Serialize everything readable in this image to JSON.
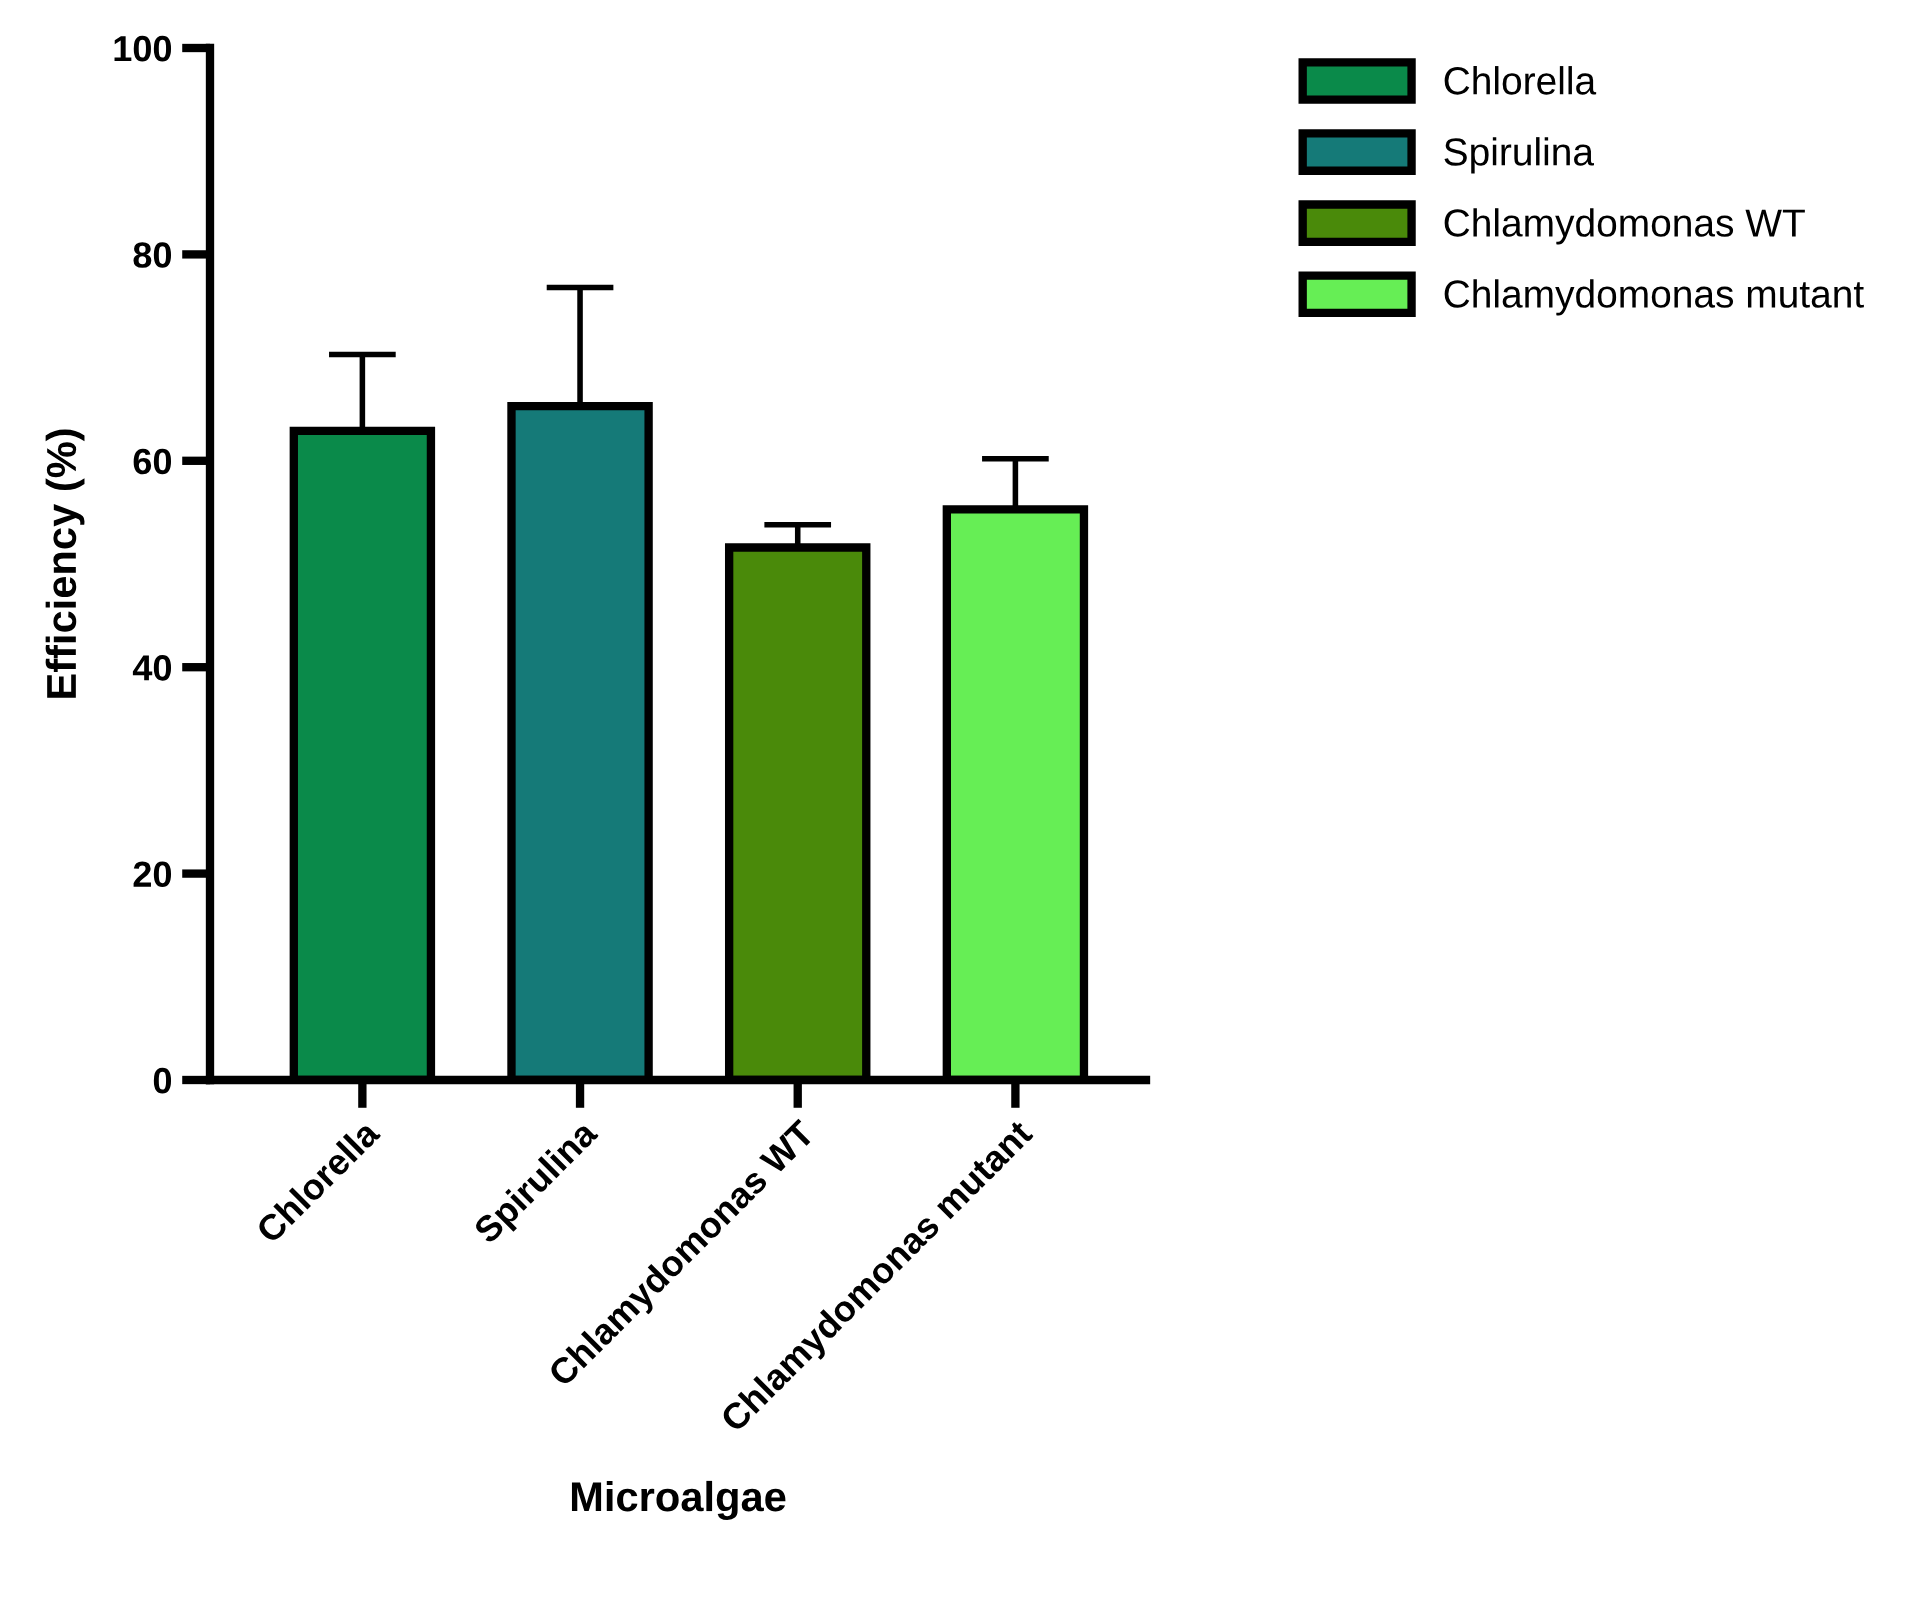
{
  "chart_data": {
    "type": "bar",
    "xlabel": "Microalgae",
    "ylabel": "Efficiency (%)",
    "categories": [
      "Chlorella",
      "Spirulina",
      "Chlamydomonas WT",
      "Chlamydomonas mutant"
    ],
    "series": [
      {
        "name": "Chlorella",
        "color": "#0a8a4a",
        "values": [
          62.9,
          null,
          null,
          null
        ],
        "errors": [
          [
            62.9,
            70.3
          ],
          null,
          null,
          null
        ]
      },
      {
        "name": "Spirulina",
        "color": "#157a78",
        "values": [
          null,
          65.3,
          null,
          null
        ],
        "errors": [
          null,
          [
            65.3,
            76.8
          ],
          null,
          null
        ]
      },
      {
        "name": "Chlamydomonas WT",
        "color": "#4a8a0a",
        "values": [
          null,
          null,
          51.6,
          null
        ],
        "errors": [
          null,
          null,
          [
            51.6,
            53.8
          ],
          null
        ]
      },
      {
        "name": "Chlamydomonas mutant",
        "color": "#66ee55",
        "values": [
          null,
          null,
          null,
          55.3
        ],
        "errors": [
          null,
          null,
          null,
          [
            55.3,
            60.2
          ]
        ]
      }
    ],
    "ylim": [
      0,
      100
    ],
    "yticks": [
      0,
      20,
      40,
      60,
      80,
      100
    ],
    "grid": false,
    "legend": "top right"
  }
}
